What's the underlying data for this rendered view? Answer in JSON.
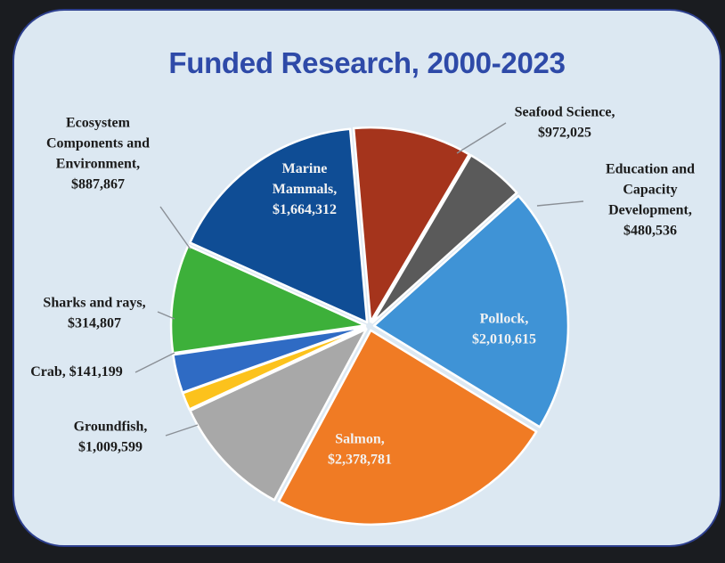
{
  "chart_data": {
    "type": "pie",
    "title": "Funded Research, 2000-2023",
    "slices": [
      {
        "name": "Seafood Science",
        "value": 972025,
        "value_text": "$972,025",
        "label_lines": [
          "Seafood Science,",
          "$972,025"
        ],
        "color": "#a5341c",
        "label_style": "outside"
      },
      {
        "name": "Education and Capacity Development",
        "value": 480536,
        "value_text": "$480,536",
        "label_lines": [
          "Education and",
          "Capacity",
          "Development,",
          "$480,536"
        ],
        "color": "#5a5a5a",
        "label_style": "outside"
      },
      {
        "name": "Pollock",
        "value": 2010615,
        "value_text": "$2,010,615",
        "label_lines": [
          "Pollock,",
          "$2,010,615"
        ],
        "color": "#3f93d6",
        "label_style": "inside"
      },
      {
        "name": "Salmon",
        "value": 2378781,
        "value_text": "$2,378,781",
        "label_lines": [
          "Salmon,",
          "$2,378,781"
        ],
        "color": "#f07b24",
        "label_style": "inside"
      },
      {
        "name": "Groundfish",
        "value": 1009599,
        "value_text": "$1,009,599",
        "label_lines": [
          "Groundfish,",
          "$1,009,599"
        ],
        "color": "#a8a8a8",
        "label_style": "outside"
      },
      {
        "name": "Crab",
        "value": 141199,
        "value_text": "$141,199",
        "label_lines": [
          "Crab, $141,199"
        ],
        "color": "#fcc21c",
        "label_style": "outside"
      },
      {
        "name": "Sharks and rays",
        "value": 314807,
        "value_text": "$314,807",
        "label_lines": [
          "Sharks and rays,",
          "$314,807"
        ],
        "color": "#2f6bc4",
        "label_style": "outside"
      },
      {
        "name": "Ecosystem Components and Environment",
        "value": 887867,
        "value_text": "$887,867",
        "label_lines": [
          "Ecosystem",
          "Components and",
          "Environment,",
          "$887,867"
        ],
        "color": "#3db03a",
        "label_style": "outside"
      },
      {
        "name": "Marine Mammals",
        "value": 1664312,
        "value_text": "$1,664,312",
        "label_lines": [
          "Marine",
          "Mammals,",
          "$1,664,312"
        ],
        "color": "#0f4d95",
        "label_style": "inside"
      }
    ]
  }
}
